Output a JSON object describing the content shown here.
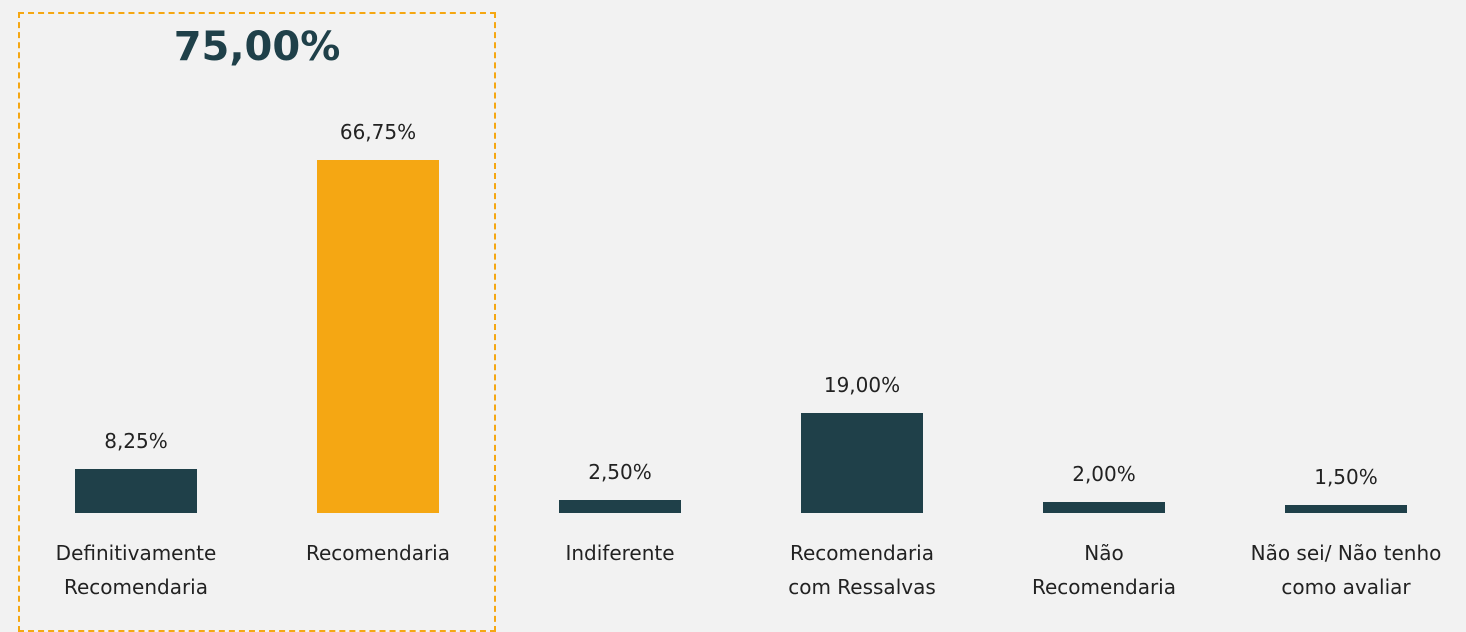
{
  "chart_data": {
    "type": "bar",
    "highlight_total": {
      "value": 75,
      "label": "75,00%"
    },
    "categories": [
      "Definitivamente\nRecomendaria",
      "Recomendaria",
      "Indiferente",
      "Recomendaria\ncom Ressalvas",
      "Não\nRecomendaria",
      "Não sei/ Não tenho\ncomo avaliar"
    ],
    "values": [
      8.25,
      66.75,
      2.5,
      19,
      2,
      1.5
    ],
    "value_labels": [
      "8,25%",
      "66,75%",
      "2,50%",
      "19,00%",
      "2,00%",
      "1,50%"
    ],
    "colors": [
      "#1f4049",
      "#f5a713",
      "#1f4049",
      "#1f4049",
      "#1f4049",
      "#1f4049"
    ]
  }
}
